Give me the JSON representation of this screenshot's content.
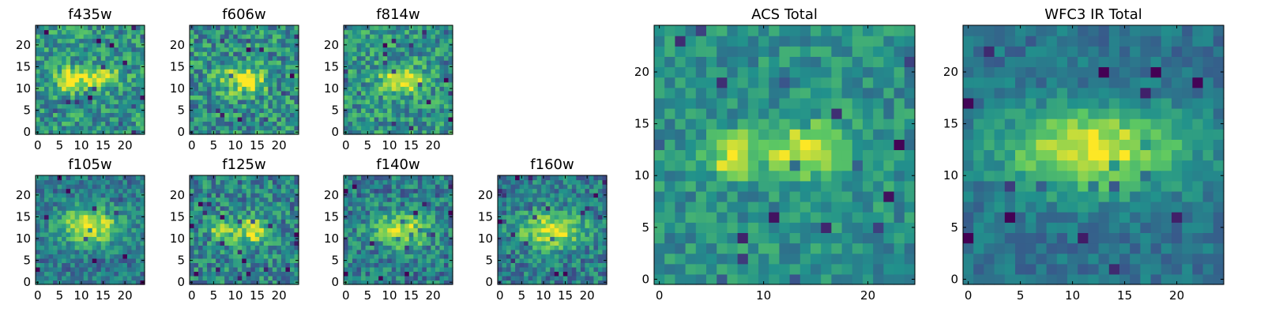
{
  "figure": {
    "colormap": "viridis",
    "colormap_stops": [
      "#440154",
      "#3b528b",
      "#21918c",
      "#5ec962",
      "#fde725"
    ],
    "background": "#ffffff"
  },
  "chart_data": [
    {
      "type": "heatmap",
      "id": "f435w",
      "title": "f435w",
      "grid": [
        25,
        25
      ],
      "xlim": [
        0,
        24
      ],
      "ylim": [
        0,
        24
      ],
      "xticks": [
        0,
        5,
        10,
        15,
        20
      ],
      "yticks": [
        0,
        5,
        10,
        15,
        20
      ],
      "seed": 11,
      "peaks": [
        {
          "x": 7,
          "y": 12,
          "amp": 0.55,
          "sx": 2.0,
          "sy": 1.8
        },
        {
          "x": 14,
          "y": 12.5,
          "amp": 0.5,
          "sx": 3.2,
          "sy": 1.6
        }
      ],
      "base": 0.52,
      "noise": 0.45
    },
    {
      "type": "heatmap",
      "id": "f606w",
      "title": "f606w",
      "grid": [
        25,
        25
      ],
      "xlim": [
        0,
        24
      ],
      "ylim": [
        0,
        24
      ],
      "xticks": [
        0,
        5,
        10,
        15,
        20
      ],
      "yticks": [
        0,
        5,
        10,
        15,
        20
      ],
      "seed": 23,
      "peaks": [
        {
          "x": 12,
          "y": 12,
          "amp": 0.55,
          "sx": 3.5,
          "sy": 2.0
        }
      ],
      "base": 0.5,
      "noise": 0.5
    },
    {
      "type": "heatmap",
      "id": "f814w",
      "title": "f814w",
      "grid": [
        25,
        25
      ],
      "xlim": [
        0,
        24
      ],
      "ylim": [
        0,
        24
      ],
      "xticks": [
        0,
        5,
        10,
        15,
        20
      ],
      "yticks": [
        0,
        5,
        10,
        15,
        20
      ],
      "seed": 37,
      "peaks": [
        {
          "x": 13,
          "y": 12,
          "amp": 0.5,
          "sx": 3.5,
          "sy": 2.0
        }
      ],
      "base": 0.52,
      "noise": 0.45
    },
    {
      "type": "heatmap",
      "id": "f105w",
      "title": "f105w",
      "grid": [
        25,
        25
      ],
      "xlim": [
        0,
        24
      ],
      "ylim": [
        0,
        24
      ],
      "xticks": [
        0,
        5,
        10,
        15,
        20
      ],
      "yticks": [
        0,
        5,
        10,
        15,
        20
      ],
      "seed": 41,
      "peaks": [
        {
          "x": 12,
          "y": 13,
          "amp": 0.55,
          "sx": 5.0,
          "sy": 3.0
        }
      ],
      "base": 0.4,
      "noise": 0.35
    },
    {
      "type": "heatmap",
      "id": "f125w",
      "title": "f125w",
      "grid": [
        25,
        25
      ],
      "xlim": [
        0,
        24
      ],
      "ylim": [
        0,
        24
      ],
      "xticks": [
        0,
        5,
        10,
        15,
        20
      ],
      "yticks": [
        0,
        5,
        10,
        15,
        20
      ],
      "seed": 53,
      "peaks": [
        {
          "x": 7,
          "y": 12,
          "amp": 0.4,
          "sx": 2.2,
          "sy": 2.0
        },
        {
          "x": 14,
          "y": 12,
          "amp": 0.5,
          "sx": 2.5,
          "sy": 2.2
        }
      ],
      "base": 0.45,
      "noise": 0.45
    },
    {
      "type": "heatmap",
      "id": "f140w",
      "title": "f140w",
      "grid": [
        25,
        25
      ],
      "xlim": [
        0,
        24
      ],
      "ylim": [
        0,
        24
      ],
      "xticks": [
        0,
        5,
        10,
        15,
        20
      ],
      "yticks": [
        0,
        5,
        10,
        15,
        20
      ],
      "seed": 67,
      "peaks": [
        {
          "x": 13,
          "y": 12,
          "amp": 0.5,
          "sx": 4.5,
          "sy": 2.8
        }
      ],
      "base": 0.42,
      "noise": 0.42
    },
    {
      "type": "heatmap",
      "id": "f160w",
      "title": "f160w",
      "grid": [
        25,
        25
      ],
      "xlim": [
        0,
        24
      ],
      "ylim": [
        0,
        24
      ],
      "xticks": [
        0,
        5,
        10,
        15,
        20
      ],
      "yticks": [
        0,
        5,
        10,
        15,
        20
      ],
      "seed": 79,
      "peaks": [
        {
          "x": 12,
          "y": 12,
          "amp": 0.55,
          "sx": 5.0,
          "sy": 2.8
        }
      ],
      "base": 0.42,
      "noise": 0.4
    },
    {
      "type": "heatmap",
      "id": "acs-total",
      "title": "ACS Total",
      "grid": [
        25,
        25
      ],
      "xlim": [
        0,
        24
      ],
      "ylim": [
        0,
        24
      ],
      "xticks": [
        0,
        10,
        20
      ],
      "yticks": [
        0,
        5,
        10,
        15,
        20
      ],
      "seed": 97,
      "peaks": [
        {
          "x": 7,
          "y": 12,
          "amp": 0.45,
          "sx": 1.8,
          "sy": 1.6
        },
        {
          "x": 14,
          "y": 12.5,
          "amp": 0.5,
          "sx": 2.6,
          "sy": 1.8
        }
      ],
      "base": 0.5,
      "noise": 0.3
    },
    {
      "type": "heatmap",
      "id": "wfc3-ir-total",
      "title": "WFC3 IR Total",
      "grid": [
        25,
        25
      ],
      "xlim": [
        0,
        24
      ],
      "ylim": [
        0,
        24
      ],
      "xticks": [
        0,
        5,
        10,
        15,
        20
      ],
      "yticks": [
        0,
        5,
        10,
        15,
        20
      ],
      "seed": 113,
      "peaks": [
        {
          "x": 12,
          "y": 12.5,
          "amp": 0.6,
          "sx": 6.0,
          "sy": 2.8
        }
      ],
      "base": 0.38,
      "noise": 0.22
    }
  ]
}
